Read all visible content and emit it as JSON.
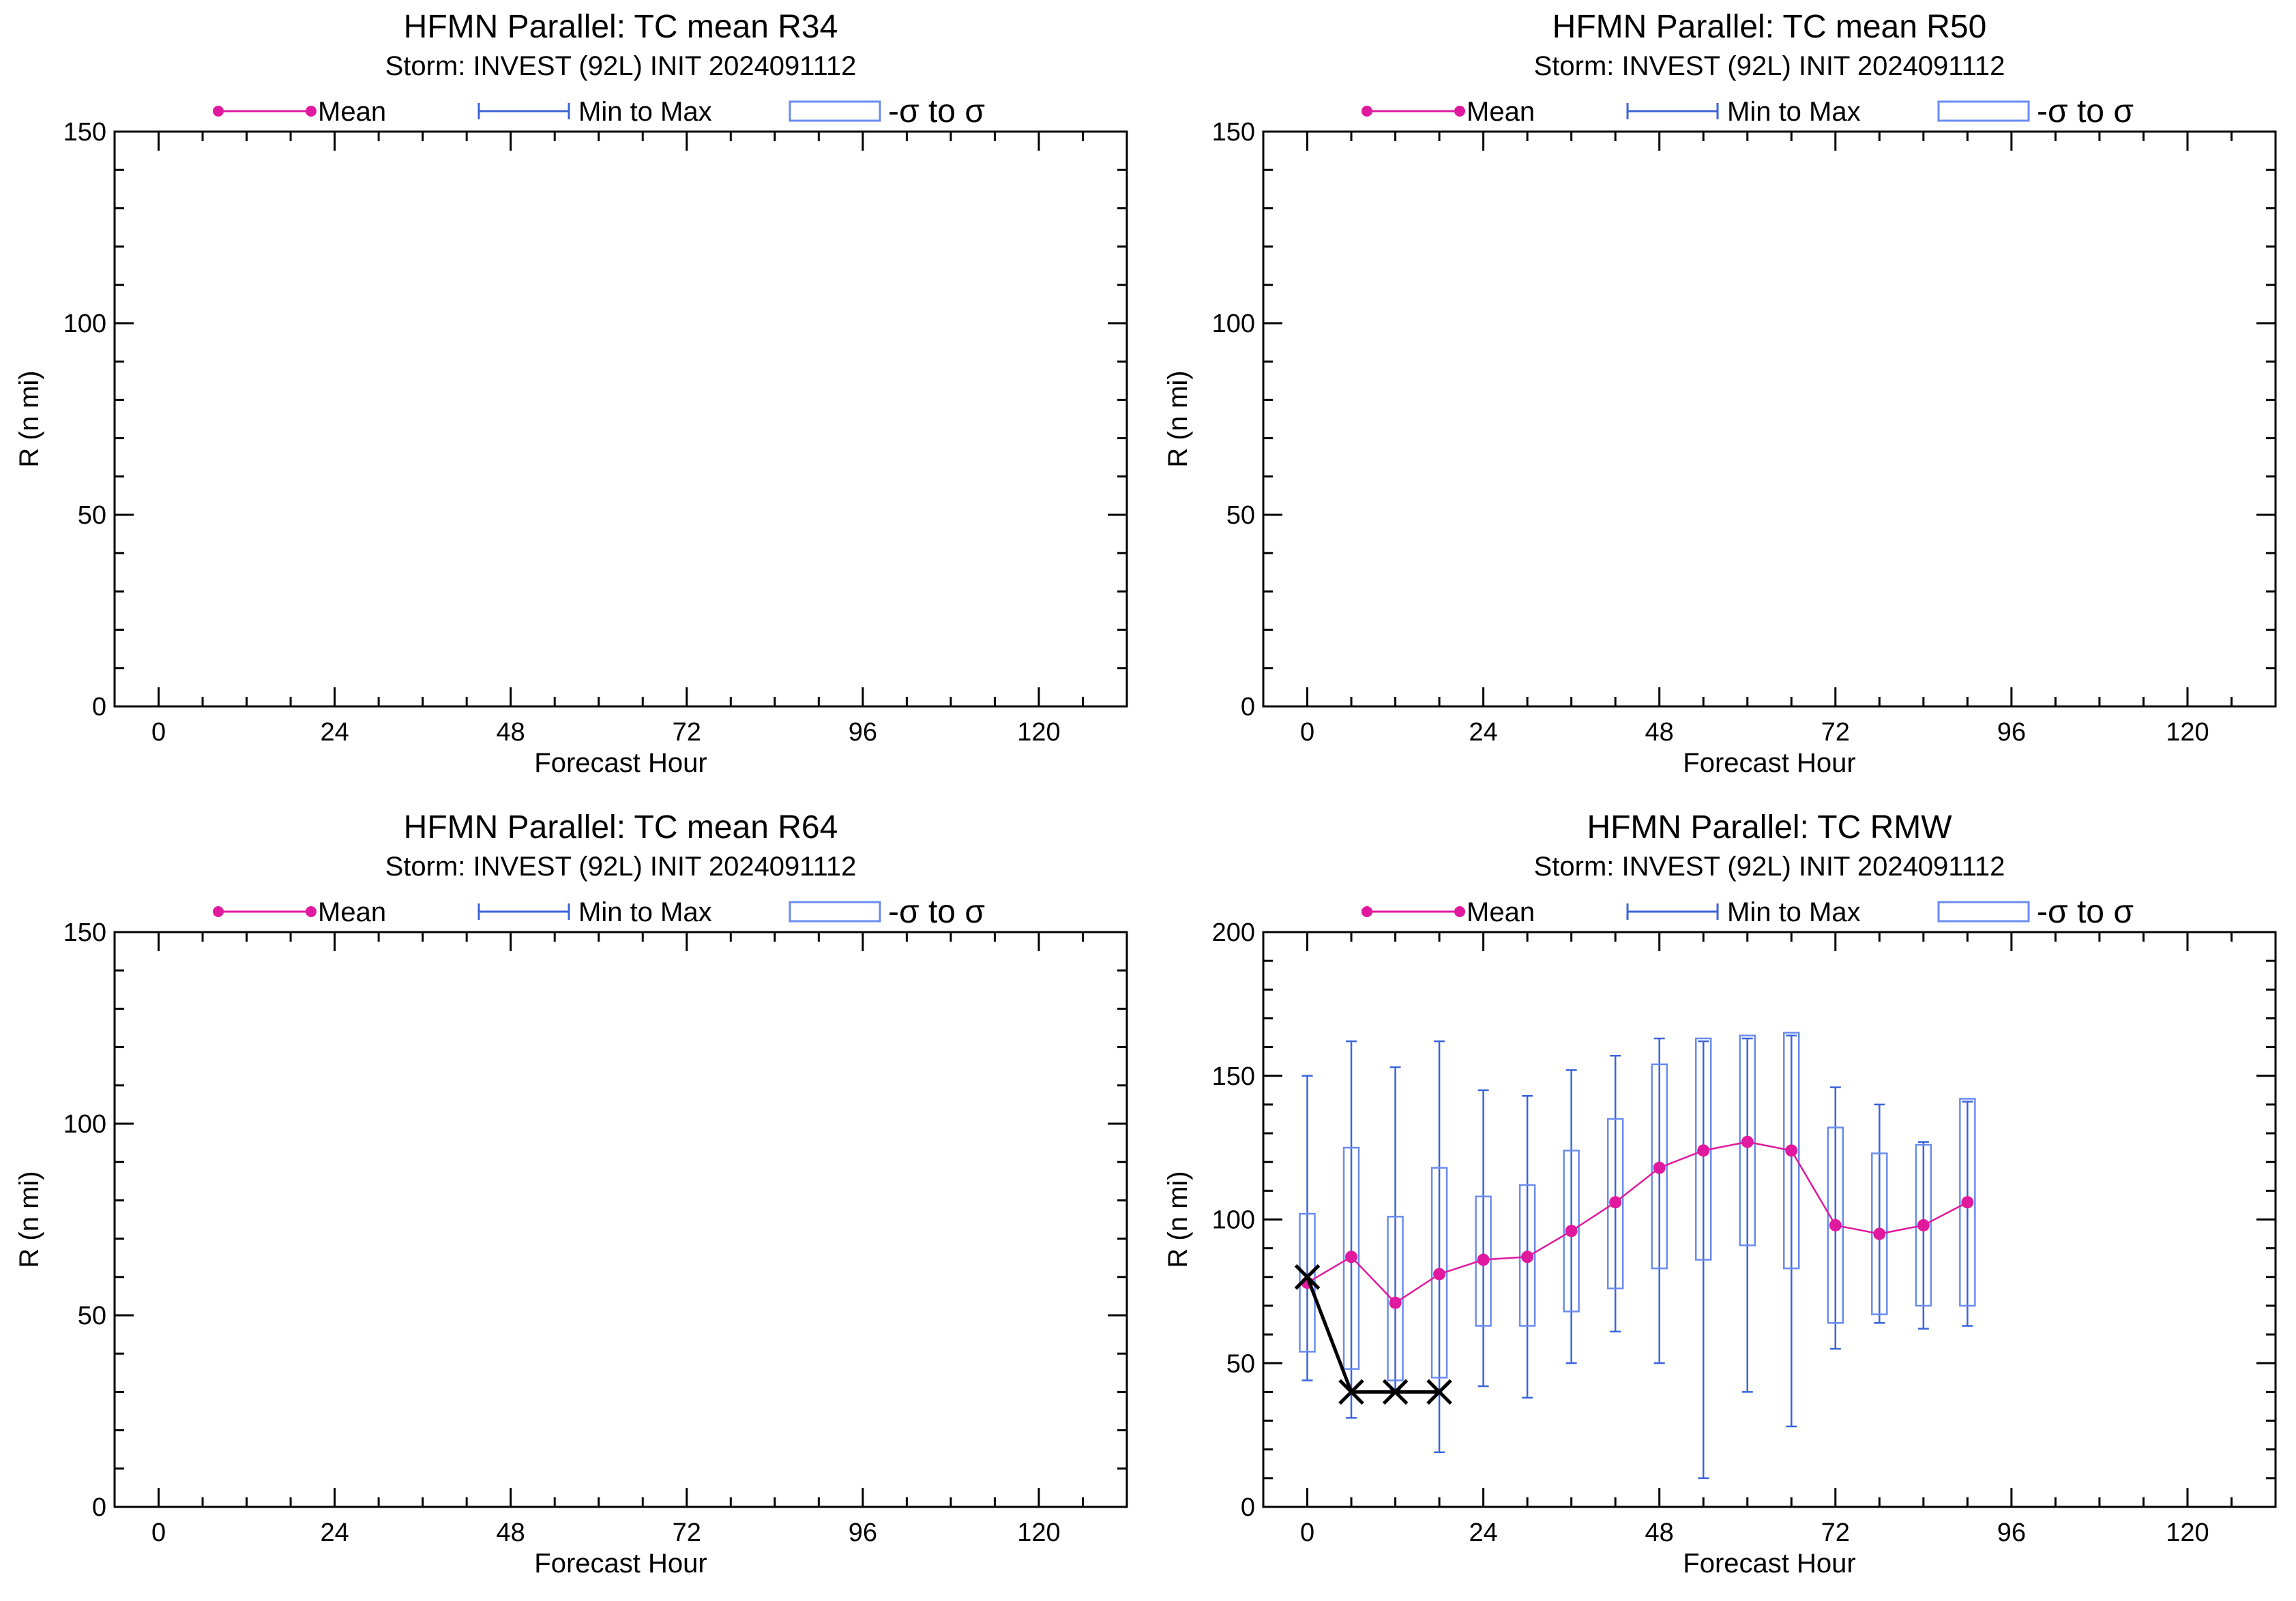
{
  "colors": {
    "mean": "#e0199e",
    "range": "#3b63d9",
    "sigma_box": "#6a8cf0",
    "observed": "#000000",
    "axis": "#000000"
  },
  "legend": {
    "mean": "Mean",
    "range": "Min to Max",
    "sigma": "-σ to σ"
  },
  "chart_data": [
    {
      "type": "line",
      "title": "HFMN Parallel: TC mean R34",
      "subtitle": "Storm: INVEST (92L) INIT 2024091112",
      "xlabel": "Forecast Hour",
      "ylabel": "R (n mi)",
      "xlim": [
        -6,
        132
      ],
      "ylim": [
        0,
        150
      ],
      "xticks": [
        0,
        24,
        48,
        72,
        96,
        120
      ],
      "yticks": [
        0,
        50,
        100,
        150
      ],
      "grid": false,
      "legend_position": "top",
      "series": []
    },
    {
      "type": "line",
      "title": "HFMN Parallel: TC mean R50",
      "subtitle": "Storm: INVEST (92L) INIT 2024091112",
      "xlabel": "Forecast Hour",
      "ylabel": "R (n mi)",
      "xlim": [
        -6,
        132
      ],
      "ylim": [
        0,
        150
      ],
      "xticks": [
        0,
        24,
        48,
        72,
        96,
        120
      ],
      "yticks": [
        0,
        50,
        100,
        150
      ],
      "grid": false,
      "legend_position": "top",
      "series": []
    },
    {
      "type": "line",
      "title": "HFMN Parallel: TC mean R64",
      "subtitle": "Storm: INVEST (92L) INIT 2024091112",
      "xlabel": "Forecast Hour",
      "ylabel": "R (n mi)",
      "xlim": [
        -6,
        132
      ],
      "ylim": [
        0,
        150
      ],
      "xticks": [
        0,
        24,
        48,
        72,
        96,
        120
      ],
      "yticks": [
        0,
        50,
        100,
        150
      ],
      "grid": false,
      "legend_position": "top",
      "series": []
    },
    {
      "type": "line",
      "title": "HFMN Parallel: TC RMW",
      "subtitle": "Storm: INVEST (92L) INIT 2024091112",
      "xlabel": "Forecast Hour",
      "ylabel": "R (n mi)",
      "xlim": [
        -6,
        132
      ],
      "ylim": [
        0,
        200
      ],
      "xticks": [
        0,
        24,
        48,
        72,
        96,
        120
      ],
      "yticks": [
        0,
        50,
        100,
        150,
        200
      ],
      "grid": false,
      "legend_position": "top",
      "x": [
        0,
        6,
        12,
        18,
        24,
        30,
        36,
        42,
        48,
        54,
        60,
        66,
        72,
        78,
        84,
        90
      ],
      "series": [
        {
          "kind": "mean",
          "values": [
            78,
            87,
            71,
            81,
            86,
            87,
            96,
            106,
            118,
            124,
            127,
            124,
            98,
            95,
            98,
            106
          ]
        },
        {
          "kind": "min",
          "values": [
            44,
            31,
            41,
            19,
            42,
            38,
            50,
            61,
            50,
            10,
            40,
            28,
            55,
            64,
            62,
            63
          ]
        },
        {
          "kind": "max",
          "values": [
            150,
            162,
            153,
            162,
            145,
            143,
            152,
            157,
            163,
            162,
            163,
            164,
            146,
            140,
            127,
            141
          ]
        },
        {
          "kind": "sigma_low",
          "values": [
            54,
            48,
            44,
            45,
            63,
            63,
            68,
            76,
            83,
            86,
            91,
            83,
            64,
            67,
            70,
            70
          ]
        },
        {
          "kind": "sigma_high",
          "values": [
            102,
            125,
            101,
            118,
            108,
            112,
            124,
            135,
            154,
            163,
            164,
            165,
            132,
            123,
            126,
            142
          ]
        },
        {
          "kind": "observed",
          "x": [
            0,
            6,
            12,
            18
          ],
          "values": [
            80,
            40,
            40,
            40
          ]
        }
      ]
    }
  ]
}
